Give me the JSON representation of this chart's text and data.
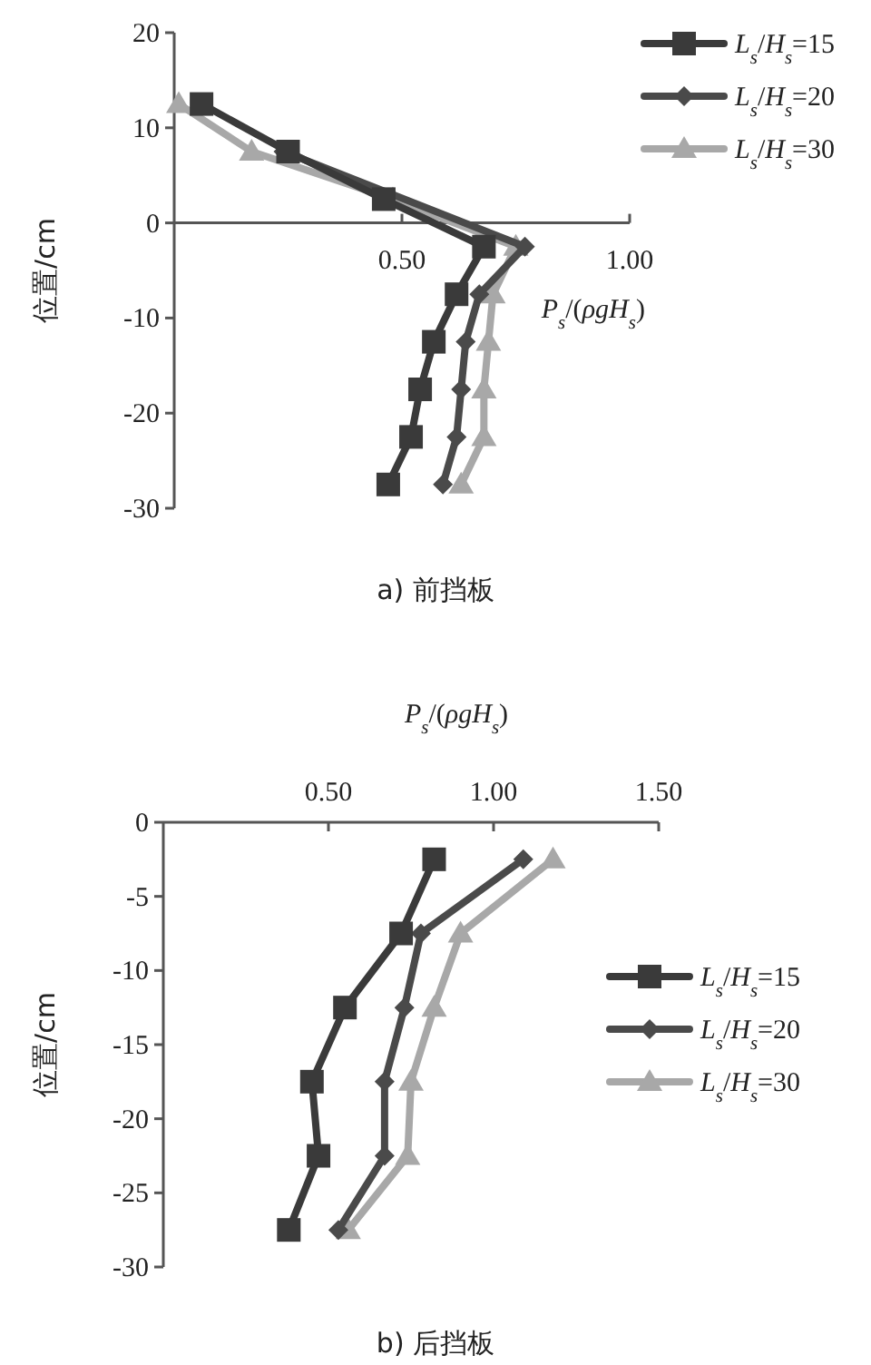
{
  "chart_data": [
    {
      "type": "line",
      "title": "a) 前挡板",
      "xlabel": "P$_{s}$/(ρgH$_{s}$)",
      "ylabel": "位置/cm",
      "xlim": [
        0,
        1
      ],
      "xticks": [
        {
          "value": 0.5,
          "label": "0.50"
        },
        {
          "value": 1,
          "label": "1.00"
        }
      ],
      "ylim": [
        -30,
        20
      ],
      "yticks": [
        -30,
        -20,
        -10,
        0,
        10,
        20
      ],
      "legend": "top right",
      "grid": false,
      "series": [
        {
          "name": "L$_{s}$/H$_{s}$=15",
          "color": "#3a3a3a",
          "marker": "square",
          "x": [
            0.06,
            0.25,
            0.46,
            0.68,
            0.62,
            0.57,
            0.54,
            0.52,
            0.47
          ],
          "values": [
            12.5,
            7.5,
            2.5,
            -2.5,
            -7.5,
            -12.5,
            -17.5,
            -22.5,
            -27.5
          ]
        },
        {
          "name": "L$_{s}$/H$_{s}$=20",
          "color": "#4a4a4a",
          "marker": "diamond",
          "x": [
            null,
            0.24,
            null,
            0.77,
            0.67,
            0.64,
            0.63,
            0.62,
            0.59
          ],
          "values": [
            null,
            7.5,
            null,
            -2.5,
            -7.5,
            -12.5,
            -17.5,
            -22.5,
            -27.5
          ]
        },
        {
          "name": "L$_{s}$/H$_{s}$=30",
          "color": "#a8a8a8",
          "marker": "triangle",
          "x": [
            0.01,
            0.17,
            0.48,
            0.75,
            0.7,
            0.69,
            0.68,
            0.68,
            0.63
          ],
          "values": [
            12.5,
            7.5,
            2.5,
            -2.5,
            -7.5,
            -12.5,
            -17.5,
            -22.5,
            -27.5
          ]
        }
      ]
    },
    {
      "type": "line",
      "title": "b) 后挡板",
      "xlabel": "P$_{s}$/(ρgH$_{s}$)",
      "ylabel": "位置/cm",
      "xlim": [
        0,
        1.5
      ],
      "xticks": [
        {
          "value": 0.5,
          "label": "0.50"
        },
        {
          "value": 1,
          "label": "1.00"
        },
        {
          "value": 1.5,
          "label": "1.50"
        }
      ],
      "ylim": [
        -30,
        0
      ],
      "yticks": [
        -30,
        -25,
        -20,
        -15,
        -10,
        -5,
        0
      ],
      "legend": "right",
      "grid": false,
      "series": [
        {
          "name": "L$_{s}$/H$_{s}$=15",
          "color": "#3a3a3a",
          "marker": "square",
          "x": [
            0.82,
            0.72,
            0.55,
            0.45,
            0.47,
            0.38
          ],
          "values": [
            -2.5,
            -7.5,
            -12.5,
            -17.5,
            -22.5,
            -27.5
          ]
        },
        {
          "name": "L$_{s}$/H$_{s}$=20",
          "color": "#4a4a4a",
          "marker": "diamond",
          "x": [
            1.09,
            0.78,
            0.73,
            0.67,
            0.67,
            0.53
          ],
          "values": [
            -2.5,
            -7.5,
            -12.5,
            -17.5,
            -22.5,
            -27.5
          ]
        },
        {
          "name": "L$_{s}$/H$_{s}$=30",
          "color": "#a8a8a8",
          "marker": "triangle",
          "x": [
            1.18,
            0.9,
            0.82,
            0.75,
            0.74,
            0.56
          ],
          "values": [
            -2.5,
            -7.5,
            -12.5,
            -17.5,
            -22.5,
            -27.5
          ]
        }
      ]
    }
  ]
}
